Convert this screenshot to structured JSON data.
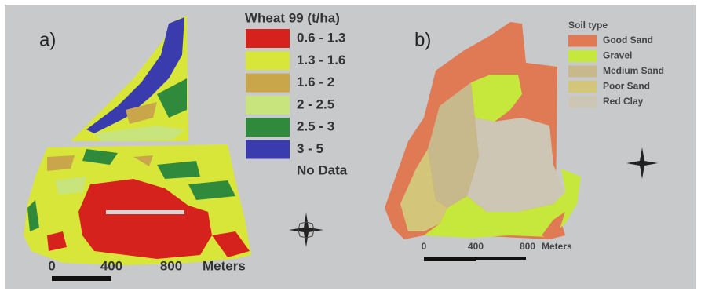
{
  "panel_a": {
    "label": "a)",
    "legend": {
      "title": "Wheat 99 (t/ha)",
      "items": [
        {
          "label": "0.6 - 1.3",
          "color": "#d6221d"
        },
        {
          "label": "1.3 - 1.6",
          "color": "#d8e63a"
        },
        {
          "label": "1.6 - 2",
          "color": "#c9a64a"
        },
        {
          "label": "2 - 2.5",
          "color": "#c8e47c"
        },
        {
          "label": "2.5 - 3",
          "color": "#2f8a3c"
        },
        {
          "label": "3 - 5",
          "color": "#3a3cae"
        }
      ],
      "no_data": "No Data"
    },
    "scale": {
      "ticks": [
        "0",
        "400",
        "800"
      ],
      "unit": "Meters"
    }
  },
  "panel_b": {
    "label": "b)",
    "legend": {
      "title": "Soil type",
      "items": [
        {
          "label": "Good Sand",
          "color": "#df7a55"
        },
        {
          "label": "Gravel",
          "color": "#c6e83c"
        },
        {
          "label": "Medium Sand",
          "color": "#c8b98c"
        },
        {
          "label": "Poor Sand",
          "color": "#d3c67a"
        },
        {
          "label": "Red Clay",
          "color": "#cec6b4"
        }
      ]
    },
    "scale": {
      "ticks": [
        "0",
        "400",
        "800"
      ],
      "unit": "Meters"
    }
  }
}
